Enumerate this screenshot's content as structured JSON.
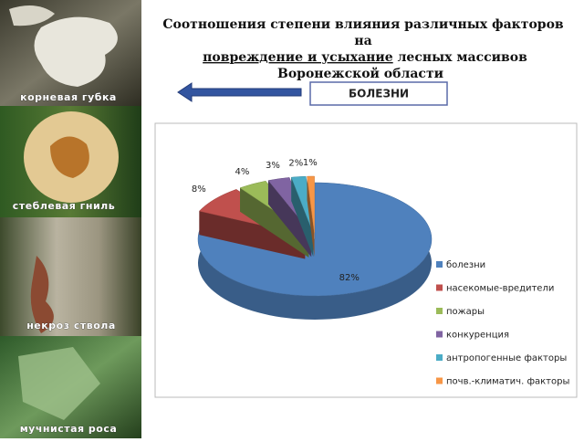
{
  "slide": {
    "title_lines": [
      "Соотношения степени влияния различных факторов",
      "на"
    ],
    "title_underlined": "повреждение и усыхание",
    "title_rest": "лесных массивов",
    "title_last": "Воронежской области",
    "box": "БОЛЕЗНИ",
    "photos": [
      "корневая губка",
      "стеблевая гниль",
      "некроз ствола",
      "мучнистая роса"
    ]
  },
  "chart_data": {
    "type": "pie3d",
    "categories": [
      "болезни",
      "насекомые-вредители",
      "пожары",
      "конкуренция",
      "антропогенные факторы",
      "почв.-климатич. факторы"
    ],
    "values": [
      82,
      8,
      4,
      3,
      2,
      1
    ],
    "value_labels": [
      "82%",
      "8%",
      "4%",
      "3%",
      "2%",
      "1%"
    ],
    "colors": [
      "#4f81bd",
      "#c0504d",
      "#9bbb59",
      "#8064a2",
      "#4bacc6",
      "#f79646"
    ],
    "legend": "right"
  }
}
